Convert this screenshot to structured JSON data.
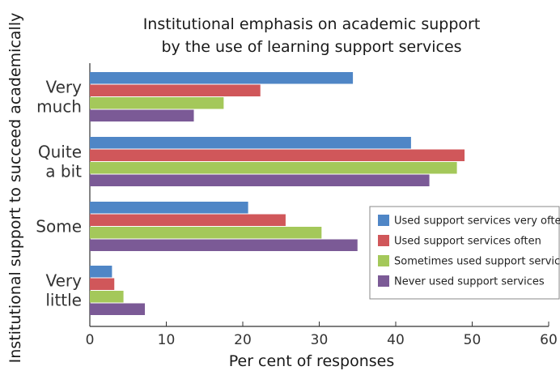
{
  "chart_data": {
    "type": "bar",
    "orientation": "horizontal",
    "title": "Institutional emphasis on academic support",
    "subtitle": "by the use of learning support services",
    "xlabel": "Per cent of responses",
    "ylabel": "Institutional support to succeed academically",
    "categories": [
      [
        "Very",
        "much"
      ],
      [
        "Quite",
        "a bit"
      ],
      [
        "Some"
      ],
      [
        "Very",
        "little"
      ]
    ],
    "xlim": [
      0,
      60
    ],
    "xticks": [
      "0",
      "10",
      "20",
      "30",
      "40",
      "50",
      "60"
    ],
    "grid": false,
    "legend_position": "right",
    "series": [
      {
        "name": "Used support services very often",
        "color": "#4f86c6",
        "values": [
          34.4,
          42.0,
          20.7,
          2.9
        ]
      },
      {
        "name": "Used support services often",
        "color": "#d0575a",
        "values": [
          22.3,
          49.0,
          25.6,
          3.2
        ]
      },
      {
        "name": "Sometimes used support services",
        "color": "#a4c85a",
        "values": [
          17.5,
          48.0,
          30.3,
          4.4
        ]
      },
      {
        "name": "Never used support services",
        "color": "#7b5a96",
        "values": [
          13.6,
          44.4,
          35.0,
          7.2
        ]
      }
    ]
  }
}
